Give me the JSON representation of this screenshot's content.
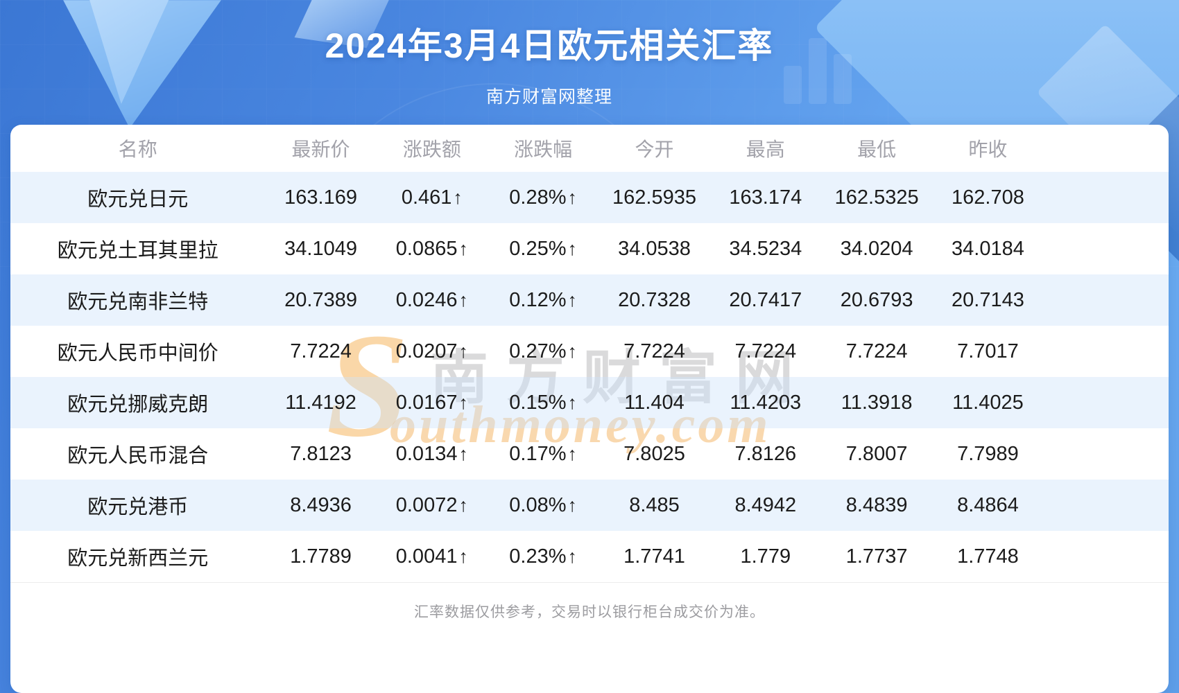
{
  "page": {
    "title": "2024年3月4日欧元相关汇率",
    "subtitle": "南方财富网整理",
    "footer_note": "汇率数据仅供参考，交易时以银行柜台成交价为准。"
  },
  "watermark": {
    "s_glyph": "S",
    "cn_text": "南方财富网",
    "en_text": "outhmoney.com"
  },
  "colors": {
    "banner_blue": "#4a87e0",
    "accent_red": "#f52b2b",
    "stripe_blue": "#e9f1fb",
    "header_gray": "#a2a2aa",
    "orange_watermark": "#f6a83f"
  },
  "table": {
    "headers": [
      "名称",
      "最新价",
      "涨跌额",
      "涨跌幅",
      "今开",
      "最高",
      "最低",
      "昨收"
    ],
    "up_arrow": "↑",
    "rows": [
      {
        "name": "欧元兑日元",
        "last": "163.169",
        "change": "0.461",
        "pct": "0.28%",
        "open": "162.5935",
        "high": "163.174",
        "low": "162.5325",
        "prev": "162.708"
      },
      {
        "name": "欧元兑土耳其里拉",
        "last": "34.1049",
        "change": "0.0865",
        "pct": "0.25%",
        "open": "34.0538",
        "high": "34.5234",
        "low": "34.0204",
        "prev": "34.0184"
      },
      {
        "name": "欧元兑南非兰特",
        "last": "20.7389",
        "change": "0.0246",
        "pct": "0.12%",
        "open": "20.7328",
        "high": "20.7417",
        "low": "20.6793",
        "prev": "20.7143"
      },
      {
        "name": "欧元人民币中间价",
        "last": "7.7224",
        "change": "0.0207",
        "pct": "0.27%",
        "open": "7.7224",
        "high": "7.7224",
        "low": "7.7224",
        "prev": "7.7017"
      },
      {
        "name": "欧元兑挪威克朗",
        "last": "11.4192",
        "change": "0.0167",
        "pct": "0.15%",
        "open": "11.404",
        "high": "11.4203",
        "low": "11.3918",
        "prev": "11.4025"
      },
      {
        "name": "欧元人民币混合",
        "last": "7.8123",
        "change": "0.0134",
        "pct": "0.17%",
        "open": "7.8025",
        "high": "7.8126",
        "low": "7.8007",
        "prev": "7.7989"
      },
      {
        "name": "欧元兑港币",
        "last": "8.4936",
        "change": "0.0072",
        "pct": "0.08%",
        "open": "8.485",
        "high": "8.4942",
        "low": "8.4839",
        "prev": "8.4864"
      },
      {
        "name": "欧元兑新西兰元",
        "last": "1.7789",
        "change": "0.0041",
        "pct": "0.23%",
        "open": "1.7741",
        "high": "1.779",
        "low": "1.7737",
        "prev": "1.7748"
      }
    ]
  }
}
